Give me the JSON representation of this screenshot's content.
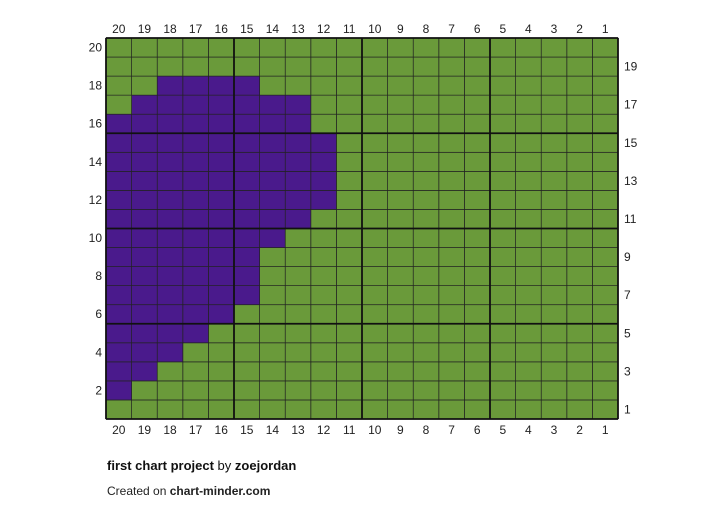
{
  "title": {
    "project_name": "first chart project",
    "by_word": "by",
    "author": "zoejordan"
  },
  "credit": {
    "prefix": "Created on",
    "site": "chart-minder.com"
  },
  "colors": {
    "background_color": "#6a9a3a",
    "motif_color": "#4a1a8c",
    "grid_line": "#222222"
  },
  "grid": {
    "columns": 20,
    "rows": 20,
    "top_column_numbers": [
      "20",
      "19",
      "18",
      "17",
      "16",
      "15",
      "14",
      "13",
      "12",
      "11",
      "10",
      "9",
      "8",
      "7",
      "6",
      "5",
      "4",
      "3",
      "2",
      "1"
    ],
    "bottom_column_numbers": [
      "20",
      "19",
      "18",
      "17",
      "16",
      "15",
      "14",
      "13",
      "12",
      "11",
      "10",
      "9",
      "8",
      "7",
      "6",
      "5",
      "4",
      "3",
      "2",
      "1"
    ],
    "left_row_numbers": [
      "20",
      "18",
      "16",
      "14",
      "12",
      "10",
      "8",
      "6",
      "4",
      "2"
    ],
    "right_row_numbers": [
      "19",
      "17",
      "15",
      "13",
      "11",
      "9",
      "7",
      "5",
      "3",
      "1"
    ],
    "motif_cells_by_row": [
      {
        "row": 18,
        "from_col": 15,
        "to_col": 18
      },
      {
        "row": 17,
        "from_col": 13,
        "to_col": 19
      },
      {
        "row": 16,
        "from_col": 13,
        "to_col": 20
      },
      {
        "row": 15,
        "from_col": 12,
        "to_col": 20
      },
      {
        "row": 14,
        "from_col": 12,
        "to_col": 20
      },
      {
        "row": 13,
        "from_col": 12,
        "to_col": 20
      },
      {
        "row": 12,
        "from_col": 12,
        "to_col": 20
      },
      {
        "row": 11,
        "from_col": 13,
        "to_col": 20
      },
      {
        "row": 10,
        "from_col": 14,
        "to_col": 20
      },
      {
        "row": 9,
        "from_col": 15,
        "to_col": 20
      },
      {
        "row": 8,
        "from_col": 15,
        "to_col": 20
      },
      {
        "row": 7,
        "from_col": 15,
        "to_col": 20
      },
      {
        "row": 6,
        "from_col": 16,
        "to_col": 20
      },
      {
        "row": 5,
        "from_col": 17,
        "to_col": 20
      },
      {
        "row": 4,
        "from_col": 18,
        "to_col": 20
      },
      {
        "row": 3,
        "from_col": 19,
        "to_col": 20
      },
      {
        "row": 2,
        "from_col": 20,
        "to_col": 20
      }
    ]
  }
}
